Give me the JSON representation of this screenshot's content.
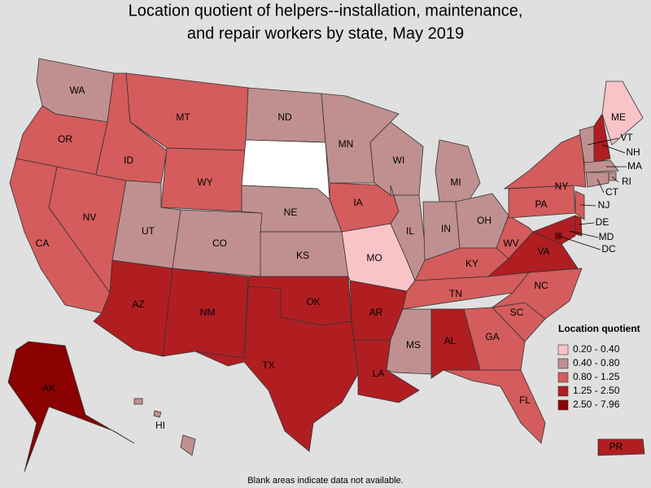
{
  "header": {
    "title_lines": [
      "Location quotient of helpers--installation, maintenance,",
      "and repair workers by state, May 2019"
    ]
  },
  "legend": {
    "title": "Location quotient",
    "items": [
      {
        "label": "0.20 - 0.40",
        "color": "#f9c4c8"
      },
      {
        "label": "0.40 - 0.80",
        "color": "#c09090"
      },
      {
        "label": "0.80 - 1.25",
        "color": "#d45c5c"
      },
      {
        "label": "1.25 - 2.50",
        "color": "#b01e22"
      },
      {
        "label": "2.50 - 7.96",
        "color": "#8b0000"
      }
    ]
  },
  "states": [
    {
      "abbr": "WA",
      "color": "#c09090"
    },
    {
      "abbr": "OR",
      "color": "#d45c5c"
    },
    {
      "abbr": "CA",
      "color": "#d45c5c"
    },
    {
      "abbr": "NV",
      "color": "#d45c5c"
    },
    {
      "abbr": "ID",
      "color": "#d45c5c"
    },
    {
      "abbr": "MT",
      "color": "#d45c5c"
    },
    {
      "abbr": "WY",
      "color": "#d45c5c"
    },
    {
      "abbr": "UT",
      "color": "#c09090"
    },
    {
      "abbr": "CO",
      "color": "#c09090"
    },
    {
      "abbr": "AZ",
      "color": "#b01e22"
    },
    {
      "abbr": "NM",
      "color": "#b01e22"
    },
    {
      "abbr": "ND",
      "color": "#c09090"
    },
    {
      "abbr": null,
      "color": "#ffffff"
    },
    {
      "abbr": "NE",
      "color": "#c09090"
    },
    {
      "abbr": "KS",
      "color": "#c09090"
    },
    {
      "abbr": "OK",
      "color": "#b01e22"
    },
    {
      "abbr": "TX",
      "color": "#b01e22"
    },
    {
      "abbr": "MN",
      "color": "#c09090"
    },
    {
      "abbr": "IA",
      "color": "#d45c5c"
    },
    {
      "abbr": "MO",
      "color": "#f9c4c8"
    },
    {
      "abbr": "AR",
      "color": "#b01e22"
    },
    {
      "abbr": "LA",
      "color": "#b01e22"
    },
    {
      "abbr": "WI",
      "color": "#c09090"
    },
    {
      "abbr": "IL",
      "color": "#c09090"
    },
    {
      "abbr": "MI",
      "color": "#c09090"
    },
    {
      "abbr": "IN",
      "color": "#c09090"
    },
    {
      "abbr": "OH",
      "color": "#c09090"
    },
    {
      "abbr": "KY",
      "color": "#d45c5c"
    },
    {
      "abbr": "TN",
      "color": "#d45c5c"
    },
    {
      "abbr": "MS",
      "color": "#c09090"
    },
    {
      "abbr": "AL",
      "color": "#b01e22"
    },
    {
      "abbr": "GA",
      "color": "#d45c5c"
    },
    {
      "abbr": "FL",
      "color": "#d45c5c"
    },
    {
      "abbr": "SC",
      "color": "#d45c5c"
    },
    {
      "abbr": "NC",
      "color": "#d45c5c"
    },
    {
      "abbr": "VA",
      "color": "#b01e22"
    },
    {
      "abbr": "WV",
      "color": "#d45c5c"
    },
    {
      "abbr": "PA",
      "color": "#d45c5c"
    },
    {
      "abbr": "NY",
      "color": "#d45c5c"
    },
    {
      "abbr": "VT",
      "color": "#c09090"
    },
    {
      "abbr": "NH",
      "color": "#b01e22"
    },
    {
      "abbr": "ME",
      "color": "#f9c4c8"
    },
    {
      "abbr": "MA",
      "color": "#c09090"
    },
    {
      "abbr": "RI",
      "color": "#c09090"
    },
    {
      "abbr": "CT",
      "color": "#c09090"
    },
    {
      "abbr": "NJ",
      "color": "#d45c5c"
    },
    {
      "abbr": "DE",
      "color": "#b01e22"
    },
    {
      "abbr": "MD",
      "color": "#b01e22"
    },
    {
      "abbr": "DC",
      "color": "#8b0000"
    },
    {
      "abbr": "AK",
      "color": "#8b0000"
    },
    {
      "abbr": "HI",
      "color": "#c09090"
    },
    {
      "abbr": "PR",
      "color": "#b01e22"
    }
  ],
  "footnote": "Blank areas indicate data not available."
}
